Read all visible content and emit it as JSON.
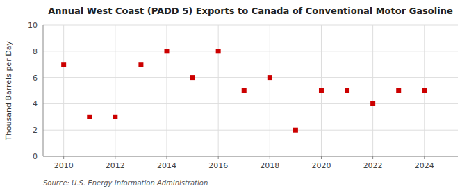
{
  "chart_data": {
    "type": "scatter",
    "title": "Annual West Coast (PADD 5) Exports to Canada of Conventional Motor Gasoline",
    "ylabel": "Thousand Barrels per Day",
    "annotations": [
      "Source: U.S. Energy Information Administration"
    ],
    "x": [
      2010,
      2011,
      2012,
      2013,
      2014,
      2015,
      2016,
      2017,
      2018,
      2019,
      2020,
      2021,
      2022,
      2023,
      2024
    ],
    "values": [
      7,
      3,
      3,
      7,
      8,
      6,
      8,
      5,
      6,
      2,
      5,
      5,
      4,
      5,
      5
    ],
    "color": "#CC0000",
    "marker": "square",
    "xlim": [
      2009.2,
      2025.3
    ],
    "ylim": [
      0,
      10
    ],
    "xticks": [
      2010,
      2012,
      2014,
      2016,
      2018,
      2020,
      2022,
      2024
    ],
    "yticks": [
      0,
      2,
      4,
      6,
      8,
      10
    ],
    "grid": true
  }
}
